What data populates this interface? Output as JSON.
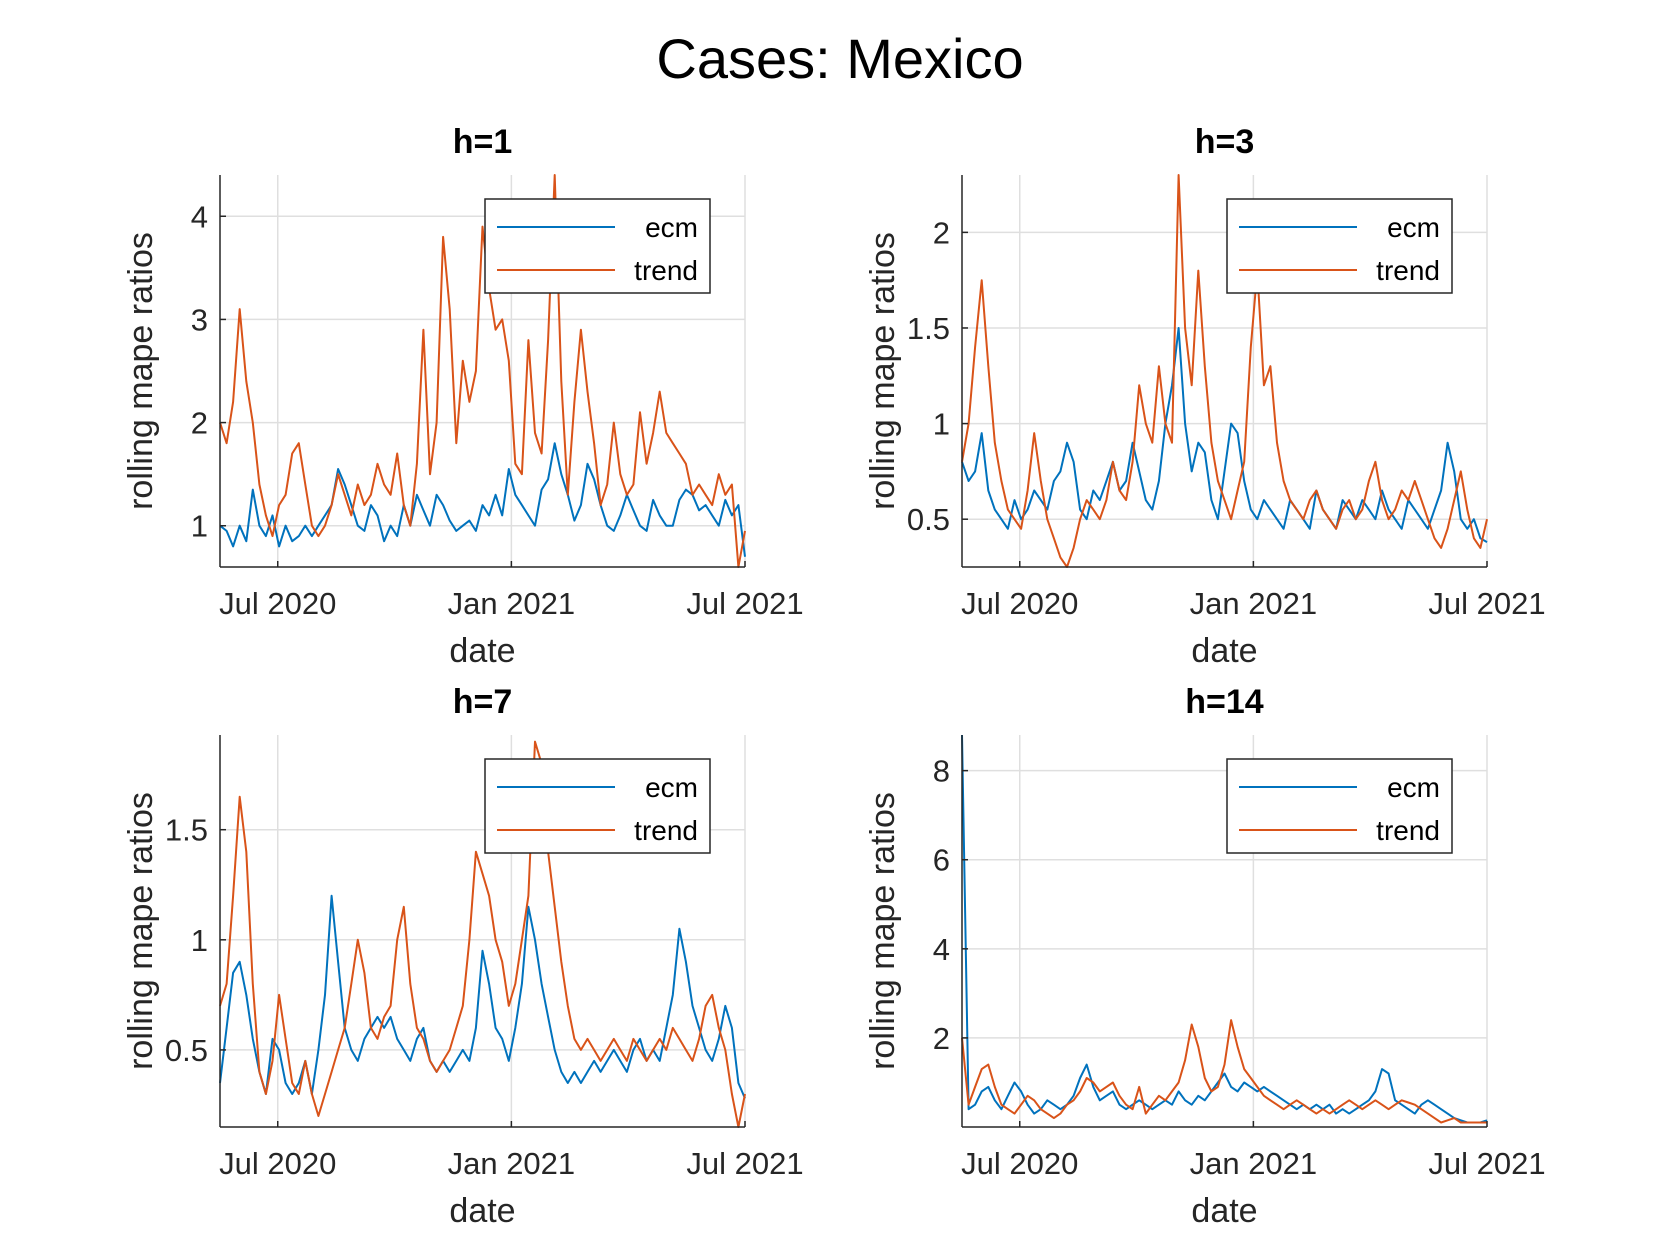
{
  "suptitle": "Cases: Mexico",
  "colors": {
    "ecm": "#0072BD",
    "trend": "#D95319",
    "grid": "#DFDFDF",
    "axis": "#262626"
  },
  "chart_data": [
    {
      "type": "line",
      "title": "h=1",
      "xlabel": "date",
      "ylabel": "rolling mape ratios",
      "x_ticks": [
        {
          "t": 0.11,
          "label": "Jul 2020"
        },
        {
          "t": 0.555,
          "label": "Jan 2021"
        },
        {
          "t": 1.0,
          "label": "Jul 2021"
        }
      ],
      "ylim": [
        0.6,
        4.4
      ],
      "yticks": [
        1,
        2,
        3,
        4
      ],
      "legend": {
        "position": "top-right",
        "entries": [
          "ecm",
          "trend"
        ]
      },
      "series": [
        {
          "name": "ecm",
          "values": [
            1.0,
            0.95,
            0.8,
            1.0,
            0.85,
            1.35,
            1.0,
            0.9,
            1.1,
            0.8,
            1.0,
            0.85,
            0.9,
            1.0,
            0.9,
            1.0,
            1.1,
            1.2,
            1.55,
            1.4,
            1.2,
            1.0,
            0.95,
            1.2,
            1.1,
            0.85,
            1.0,
            0.9,
            1.2,
            1.0,
            1.3,
            1.15,
            1.0,
            1.3,
            1.2,
            1.05,
            0.95,
            1.0,
            1.05,
            0.95,
            1.2,
            1.1,
            1.3,
            1.1,
            1.55,
            1.3,
            1.2,
            1.1,
            1.0,
            1.35,
            1.45,
            1.8,
            1.5,
            1.3,
            1.05,
            1.2,
            1.6,
            1.45,
            1.2,
            1.0,
            0.95,
            1.1,
            1.3,
            1.15,
            1.0,
            0.95,
            1.25,
            1.1,
            1.0,
            1.0,
            1.25,
            1.35,
            1.3,
            1.15,
            1.2,
            1.1,
            1.0,
            1.25,
            1.1,
            1.2,
            0.7
          ]
        },
        {
          "name": "trend",
          "values": [
            2.0,
            1.8,
            2.2,
            3.1,
            2.4,
            2.0,
            1.4,
            1.1,
            0.9,
            1.2,
            1.3,
            1.7,
            1.8,
            1.4,
            1.0,
            0.9,
            1.0,
            1.2,
            1.5,
            1.3,
            1.1,
            1.4,
            1.2,
            1.3,
            1.6,
            1.4,
            1.3,
            1.7,
            1.2,
            1.0,
            1.6,
            2.9,
            1.5,
            2.0,
            3.8,
            3.1,
            1.8,
            2.6,
            2.2,
            2.5,
            3.9,
            3.3,
            2.9,
            3.0,
            2.6,
            1.6,
            1.5,
            2.8,
            1.9,
            1.7,
            2.8,
            4.4,
            2.4,
            1.3,
            2.2,
            2.9,
            2.3,
            1.8,
            1.2,
            1.4,
            2.0,
            1.5,
            1.3,
            1.4,
            2.1,
            1.6,
            1.9,
            2.3,
            1.9,
            1.8,
            1.7,
            1.6,
            1.3,
            1.4,
            1.3,
            1.2,
            1.5,
            1.3,
            1.4,
            0.6,
            0.95
          ]
        }
      ]
    },
    {
      "type": "line",
      "title": "h=3",
      "xlabel": "date",
      "ylabel": "rolling mape ratios",
      "x_ticks": [
        {
          "t": 0.11,
          "label": "Jul 2020"
        },
        {
          "t": 0.555,
          "label": "Jan 2021"
        },
        {
          "t": 1.0,
          "label": "Jul 2021"
        }
      ],
      "ylim": [
        0.25,
        2.3
      ],
      "yticks": [
        0.5,
        1,
        1.5,
        2
      ],
      "legend": {
        "position": "top-right",
        "entries": [
          "ecm",
          "trend"
        ]
      },
      "series": [
        {
          "name": "ecm",
          "values": [
            0.8,
            0.7,
            0.75,
            0.95,
            0.65,
            0.55,
            0.5,
            0.45,
            0.6,
            0.5,
            0.55,
            0.65,
            0.6,
            0.55,
            0.7,
            0.75,
            0.9,
            0.8,
            0.55,
            0.5,
            0.65,
            0.6,
            0.7,
            0.8,
            0.65,
            0.7,
            0.9,
            0.75,
            0.6,
            0.55,
            0.7,
            1.0,
            1.2,
            1.5,
            1.0,
            0.75,
            0.9,
            0.85,
            0.6,
            0.5,
            0.75,
            1.0,
            0.95,
            0.7,
            0.55,
            0.5,
            0.6,
            0.55,
            0.5,
            0.45,
            0.6,
            0.55,
            0.5,
            0.45,
            0.65,
            0.55,
            0.5,
            0.45,
            0.6,
            0.55,
            0.5,
            0.6,
            0.55,
            0.5,
            0.65,
            0.55,
            0.5,
            0.45,
            0.6,
            0.55,
            0.5,
            0.45,
            0.55,
            0.65,
            0.9,
            0.75,
            0.5,
            0.45,
            0.5,
            0.4,
            0.38
          ]
        },
        {
          "name": "trend",
          "values": [
            0.8,
            1.0,
            1.4,
            1.75,
            1.3,
            0.9,
            0.7,
            0.55,
            0.5,
            0.45,
            0.65,
            0.95,
            0.7,
            0.5,
            0.4,
            0.3,
            0.25,
            0.35,
            0.5,
            0.6,
            0.55,
            0.5,
            0.6,
            0.8,
            0.65,
            0.6,
            0.8,
            1.2,
            1.0,
            0.9,
            1.3,
            1.0,
            0.9,
            2.3,
            1.5,
            1.2,
            1.8,
            1.3,
            0.9,
            0.7,
            0.6,
            0.5,
            0.65,
            0.8,
            1.4,
            1.8,
            1.2,
            1.3,
            0.9,
            0.7,
            0.6,
            0.55,
            0.5,
            0.6,
            0.65,
            0.55,
            0.5,
            0.45,
            0.55,
            0.6,
            0.5,
            0.55,
            0.7,
            0.8,
            0.6,
            0.5,
            0.55,
            0.65,
            0.6,
            0.7,
            0.6,
            0.5,
            0.4,
            0.35,
            0.45,
            0.6,
            0.75,
            0.55,
            0.4,
            0.35,
            0.5
          ]
        }
      ]
    },
    {
      "type": "line",
      "title": "h=7",
      "xlabel": "date",
      "ylabel": "rolling mape ratios",
      "x_ticks": [
        {
          "t": 0.11,
          "label": "Jul 2020"
        },
        {
          "t": 0.555,
          "label": "Jan 2021"
        },
        {
          "t": 1.0,
          "label": "Jul 2021"
        }
      ],
      "ylim": [
        0.15,
        1.93
      ],
      "yticks": [
        0.5,
        1,
        1.5
      ],
      "legend": {
        "position": "top-right",
        "entries": [
          "ecm",
          "trend"
        ]
      },
      "series": [
        {
          "name": "ecm",
          "values": [
            0.35,
            0.6,
            0.85,
            0.9,
            0.75,
            0.55,
            0.4,
            0.3,
            0.55,
            0.5,
            0.35,
            0.3,
            0.35,
            0.45,
            0.3,
            0.5,
            0.75,
            1.2,
            0.9,
            0.6,
            0.5,
            0.45,
            0.55,
            0.6,
            0.65,
            0.6,
            0.65,
            0.55,
            0.5,
            0.45,
            0.55,
            0.6,
            0.45,
            0.4,
            0.45,
            0.4,
            0.45,
            0.5,
            0.45,
            0.6,
            0.95,
            0.8,
            0.6,
            0.55,
            0.45,
            0.6,
            0.8,
            1.15,
            1.0,
            0.8,
            0.65,
            0.5,
            0.4,
            0.35,
            0.4,
            0.35,
            0.4,
            0.45,
            0.4,
            0.45,
            0.5,
            0.45,
            0.4,
            0.5,
            0.55,
            0.45,
            0.5,
            0.45,
            0.6,
            0.75,
            1.05,
            0.9,
            0.7,
            0.6,
            0.5,
            0.45,
            0.55,
            0.7,
            0.6,
            0.35,
            0.28
          ]
        },
        {
          "name": "trend",
          "values": [
            0.7,
            0.8,
            1.2,
            1.65,
            1.4,
            0.8,
            0.4,
            0.3,
            0.45,
            0.75,
            0.55,
            0.35,
            0.3,
            0.45,
            0.3,
            0.2,
            0.3,
            0.4,
            0.5,
            0.6,
            0.8,
            1.0,
            0.85,
            0.6,
            0.55,
            0.65,
            0.7,
            1.0,
            1.15,
            0.8,
            0.6,
            0.55,
            0.45,
            0.4,
            0.45,
            0.5,
            0.6,
            0.7,
            1.0,
            1.4,
            1.3,
            1.2,
            1.0,
            0.9,
            0.7,
            0.8,
            1.0,
            1.2,
            1.9,
            1.8,
            1.4,
            1.15,
            0.9,
            0.7,
            0.55,
            0.5,
            0.55,
            0.5,
            0.45,
            0.5,
            0.55,
            0.5,
            0.45,
            0.55,
            0.5,
            0.45,
            0.5,
            0.55,
            0.5,
            0.6,
            0.55,
            0.5,
            0.45,
            0.55,
            0.7,
            0.75,
            0.6,
            0.5,
            0.3,
            0.15,
            0.3
          ]
        }
      ]
    },
    {
      "type": "line",
      "title": "h=14",
      "xlabel": "date",
      "ylabel": "rolling mape ratios",
      "x_ticks": [
        {
          "t": 0.11,
          "label": "Jul 2020"
        },
        {
          "t": 0.555,
          "label": "Jan 2021"
        },
        {
          "t": 1.0,
          "label": "Jul 2021"
        }
      ],
      "ylim": [
        0.0,
        8.8
      ],
      "yticks": [
        2,
        4,
        6,
        8
      ],
      "legend": {
        "position": "top-right",
        "entries": [
          "ecm",
          "trend"
        ]
      },
      "series": [
        {
          "name": "ecm",
          "values": [
            8.8,
            0.4,
            0.5,
            0.8,
            0.9,
            0.6,
            0.4,
            0.7,
            1.0,
            0.8,
            0.5,
            0.3,
            0.4,
            0.6,
            0.5,
            0.4,
            0.5,
            0.7,
            1.1,
            1.4,
            0.9,
            0.6,
            0.7,
            0.8,
            0.5,
            0.4,
            0.5,
            0.6,
            0.5,
            0.4,
            0.5,
            0.6,
            0.5,
            0.8,
            0.6,
            0.5,
            0.7,
            0.6,
            0.8,
            1.0,
            1.2,
            0.9,
            0.8,
            1.0,
            0.9,
            0.8,
            0.9,
            0.8,
            0.7,
            0.6,
            0.5,
            0.4,
            0.5,
            0.4,
            0.5,
            0.4,
            0.5,
            0.3,
            0.4,
            0.3,
            0.4,
            0.5,
            0.6,
            0.8,
            1.3,
            1.2,
            0.6,
            0.5,
            0.4,
            0.3,
            0.5,
            0.6,
            0.5,
            0.4,
            0.3,
            0.2,
            0.15,
            0.1,
            0.1,
            0.1,
            0.15
          ]
        },
        {
          "name": "trend",
          "values": [
            2.0,
            0.5,
            0.9,
            1.3,
            1.4,
            0.9,
            0.5,
            0.4,
            0.3,
            0.5,
            0.7,
            0.6,
            0.4,
            0.3,
            0.2,
            0.3,
            0.5,
            0.6,
            0.8,
            1.1,
            1.0,
            0.8,
            0.9,
            1.0,
            0.7,
            0.5,
            0.4,
            0.9,
            0.3,
            0.5,
            0.7,
            0.6,
            0.8,
            1.0,
            1.5,
            2.3,
            1.8,
            1.1,
            0.8,
            0.9,
            1.4,
            2.4,
            1.8,
            1.3,
            1.1,
            0.9,
            0.7,
            0.6,
            0.5,
            0.4,
            0.5,
            0.6,
            0.5,
            0.4,
            0.3,
            0.4,
            0.3,
            0.4,
            0.5,
            0.6,
            0.5,
            0.4,
            0.5,
            0.6,
            0.5,
            0.4,
            0.5,
            0.6,
            0.55,
            0.5,
            0.4,
            0.3,
            0.2,
            0.1,
            0.15,
            0.2,
            0.1,
            0.1,
            0.1,
            0.1,
            0.1
          ]
        }
      ]
    }
  ]
}
